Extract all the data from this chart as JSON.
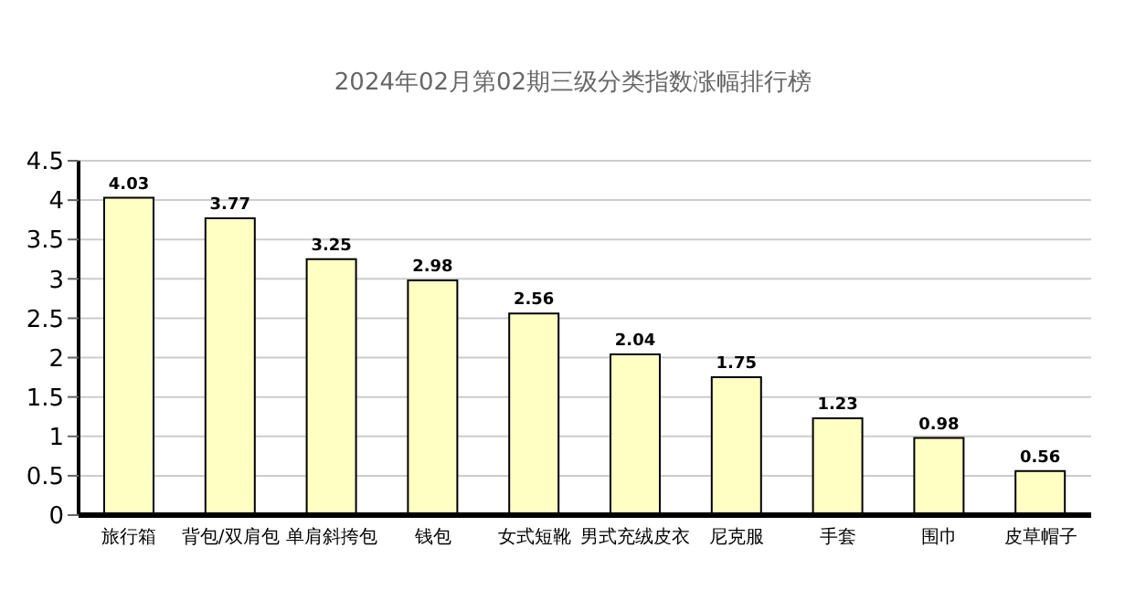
{
  "chart_data": {
    "type": "bar",
    "title": "2024年02月第02期三级分类指数涨幅排行榜",
    "categories": [
      "旅行箱",
      "背包/双肩包",
      "单肩斜挎包",
      "钱包",
      "女式短靴",
      "男式充绒皮衣",
      "尼克服",
      "手套",
      "围巾",
      "皮草帽子"
    ],
    "values": [
      4.03,
      3.77,
      3.25,
      2.98,
      2.56,
      2.04,
      1.75,
      1.23,
      0.98,
      0.56
    ],
    "color": "#ffffc4",
    "ylim": [
      0,
      4.5
    ],
    "yticks": [
      0,
      0.5,
      1,
      1.5,
      2,
      2.5,
      3,
      3.5,
      4,
      4.5
    ],
    "grid": "y",
    "data_labels": true
  }
}
